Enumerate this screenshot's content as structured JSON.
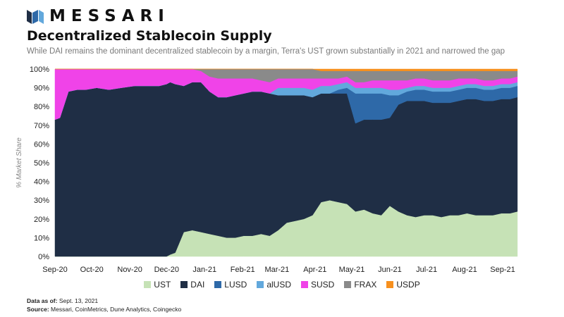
{
  "brand": {
    "name": "MESSARI"
  },
  "header": {
    "title": "Decentralized Stablecoin Supply",
    "subtitle": "While DAI remains the dominant decentralized stablecoin by a margin, Terra's UST grown substantially in 2021 and narrowed the gap"
  },
  "footer": {
    "data_as_of_label": "Data as of:",
    "data_as_of_value": "Sept. 13, 2021",
    "source_label": "Source:",
    "source_value": "Messari, CoinMetrics, Dune Analytics, Coingecko"
  },
  "chart_data": {
    "type": "area",
    "stacked": true,
    "ylabel": "% Market Share",
    "ylim": [
      0,
      100
    ],
    "y_ticks": [
      "0%",
      "10%",
      "20%",
      "30%",
      "40%",
      "50%",
      "60%",
      "70%",
      "80%",
      "90%",
      "100%"
    ],
    "x_ticks": [
      "Sep-20",
      "Oct-20",
      "Nov-20",
      "Dec-20",
      "Jan-21",
      "Feb-21",
      "Mar-21",
      "Apr-21",
      "May-21",
      "Jun-21",
      "Jul-21",
      "Aug-21",
      "Sep-21"
    ],
    "x": [
      "2020-09-01",
      "2020-09-05",
      "2020-09-12",
      "2020-09-19",
      "2020-09-26",
      "2020-10-05",
      "2020-10-15",
      "2020-10-25",
      "2020-11-05",
      "2020-11-15",
      "2020-11-25",
      "2020-12-01",
      "2020-12-04",
      "2020-12-08",
      "2020-12-15",
      "2020-12-22",
      "2020-12-29",
      "2021-01-05",
      "2021-01-12",
      "2021-01-19",
      "2021-01-26",
      "2021-02-02",
      "2021-02-09",
      "2021-02-16",
      "2021-02-23",
      "2021-03-02",
      "2021-03-09",
      "2021-03-16",
      "2021-03-23",
      "2021-03-30",
      "2021-04-06",
      "2021-04-13",
      "2021-04-20",
      "2021-04-27",
      "2021-05-04",
      "2021-05-11",
      "2021-05-18",
      "2021-05-25",
      "2021-06-01",
      "2021-06-08",
      "2021-06-15",
      "2021-06-22",
      "2021-06-29",
      "2021-07-06",
      "2021-07-13",
      "2021-07-20",
      "2021-07-27",
      "2021-08-03",
      "2021-08-10",
      "2021-08-17",
      "2021-08-24",
      "2021-08-31",
      "2021-09-07",
      "2021-09-13"
    ],
    "legend_position": "bottom",
    "grid": false,
    "series": [
      {
        "name": "UST",
        "color": "#c6e2b6",
        "values": [
          0,
          0,
          0,
          0,
          0,
          0,
          0,
          0,
          0,
          0,
          0,
          0,
          1,
          2,
          13,
          14,
          13,
          12,
          11,
          10,
          10,
          11,
          11,
          12,
          11,
          14,
          18,
          19,
          20,
          22,
          29,
          30,
          29,
          28,
          24,
          25,
          23,
          22,
          27,
          24,
          22,
          21,
          22,
          22,
          21,
          22,
          22,
          23,
          22,
          22,
          22,
          23,
          23,
          24
        ]
      },
      {
        "name": "DAI",
        "color": "#1f2e45",
        "values": [
          73,
          74,
          88,
          89,
          89,
          90,
          89,
          90,
          91,
          91,
          91,
          92,
          92,
          90,
          78,
          79,
          80,
          76,
          74,
          75,
          76,
          76,
          77,
          76,
          76,
          72,
          68,
          67,
          66,
          63,
          58,
          57,
          58,
          59,
          47,
          48,
          50,
          51,
          47,
          57,
          61,
          62,
          61,
          60,
          61,
          60,
          61,
          61,
          62,
          61,
          61,
          61,
          61,
          61
        ]
      },
      {
        "name": "LUSD",
        "color": "#2e69a8",
        "values": [
          0,
          0,
          0,
          0,
          0,
          0,
          0,
          0,
          0,
          0,
          0,
          0,
          0,
          0,
          0,
          0,
          0,
          0,
          0,
          0,
          0,
          0,
          0,
          0,
          0,
          0,
          0,
          0,
          0,
          0,
          0,
          0,
          2,
          3,
          16,
          14,
          14,
          14,
          12,
          5,
          5,
          6,
          6,
          6,
          6,
          6,
          6,
          6,
          6,
          6,
          6,
          6,
          6,
          6
        ]
      },
      {
        "name": "alUSD",
        "color": "#62a8dc",
        "values": [
          0,
          0,
          0,
          0,
          0,
          0,
          0,
          0,
          0,
          0,
          0,
          0,
          0,
          0,
          0,
          0,
          0,
          0,
          0,
          0,
          0,
          0,
          0,
          0,
          0,
          4,
          4,
          4,
          4,
          4,
          4,
          4,
          3,
          3,
          3,
          3,
          3,
          3,
          3,
          3,
          2,
          2,
          2,
          2,
          2,
          2,
          2,
          2,
          2,
          2,
          2,
          2,
          2,
          2
        ]
      },
      {
        "name": "SUSD",
        "color": "#f043e8",
        "values": [
          27,
          26,
          12,
          11,
          11,
          10,
          11,
          10,
          9,
          9,
          9,
          8,
          7,
          8,
          9,
          7,
          6,
          8,
          10,
          10,
          9,
          8,
          7,
          6,
          6,
          5,
          5,
          5,
          5,
          6,
          4,
          4,
          3,
          3,
          3,
          3,
          4,
          4,
          5,
          5,
          4,
          4,
          4,
          4,
          4,
          4,
          4,
          3,
          3,
          3,
          3,
          3,
          3,
          3
        ]
      },
      {
        "name": "FRAX",
        "color": "#8a8a8a",
        "values": [
          0,
          0,
          0,
          0,
          0,
          0,
          0,
          0,
          0,
          0,
          0,
          0,
          0,
          0,
          0,
          0,
          1,
          4,
          5,
          5,
          5,
          5,
          5,
          6,
          7,
          5,
          5,
          5,
          5,
          5,
          4,
          4,
          4,
          3,
          6,
          6,
          5,
          5,
          5,
          5,
          5,
          4,
          4,
          5,
          5,
          5,
          4,
          4,
          4,
          5,
          5,
          4,
          4,
          3
        ]
      },
      {
        "name": "USDP",
        "color": "#f7901e",
        "values": [
          0,
          0,
          0,
          0,
          0,
          0,
          0,
          0,
          0,
          0,
          0,
          0,
          0,
          0,
          0,
          0,
          0,
          0,
          0,
          0,
          0,
          0,
          0,
          0,
          0,
          0,
          0,
          0,
          0,
          0,
          1,
          1,
          1,
          1,
          1,
          1,
          1,
          1,
          1,
          1,
          1,
          1,
          1,
          1,
          1,
          1,
          1,
          1,
          1,
          1,
          1,
          1,
          1,
          1
        ]
      }
    ]
  }
}
